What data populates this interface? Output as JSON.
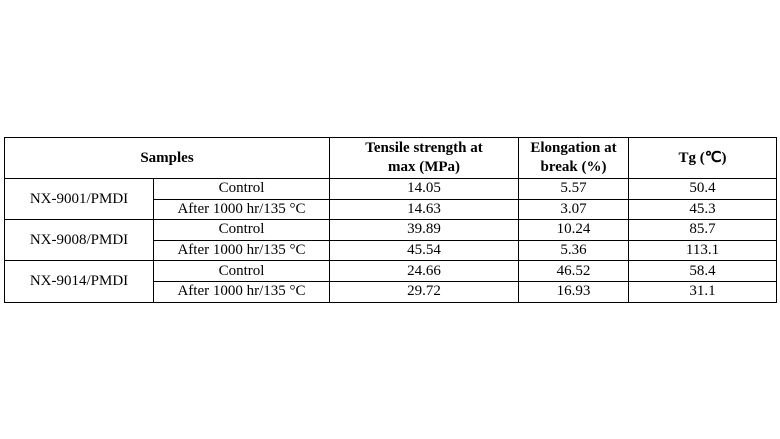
{
  "table": {
    "header": {
      "samples": "Samples",
      "columns": [
        [
          "Tensile strength at",
          "max (MPa)"
        ],
        [
          "Elongation at",
          "break (%)"
        ],
        [
          "Tg (℃)"
        ]
      ]
    },
    "groups": [
      {
        "sample": "NX-9001/PMDI",
        "rows": [
          {
            "condition": "Control",
            "values": [
              "14.05",
              "5.57",
              "50.4"
            ]
          },
          {
            "condition": "After 1000 hr/135 °C",
            "values": [
              "14.63",
              "3.07",
              "45.3"
            ]
          }
        ]
      },
      {
        "sample": "NX-9008/PMDI",
        "rows": [
          {
            "condition": "Control",
            "values": [
              "39.89",
              "10.24",
              "85.7"
            ]
          },
          {
            "condition": "After 1000 hr/135 °C",
            "values": [
              "45.54",
              "5.36",
              "113.1"
            ]
          }
        ]
      },
      {
        "sample": "NX-9014/PMDI",
        "rows": [
          {
            "condition": "Control",
            "values": [
              "24.66",
              "46.52",
              "58.4"
            ]
          },
          {
            "condition": "After 1000 hr/135 °C",
            "values": [
              "29.72",
              "16.93",
              "31.1"
            ]
          }
        ]
      }
    ]
  }
}
